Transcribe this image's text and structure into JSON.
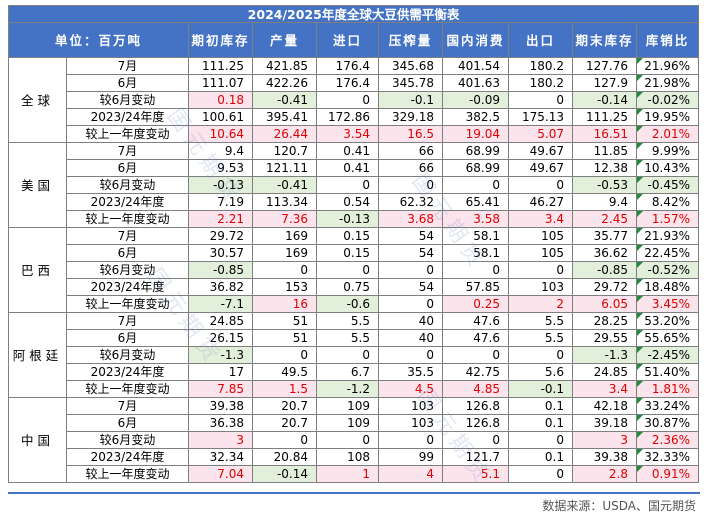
{
  "title": "2024/2025年度全球大豆供需平衡表",
  "header": {
    "unit_label": "单位：百万吨",
    "columns": [
      "期初库存",
      "产量",
      "进口",
      "压榨量",
      "国内消费",
      "出口",
      "期末库存",
      "库销比"
    ]
  },
  "row_labels": [
    "7月",
    "6月",
    "较6月变动",
    "2023/24年度",
    "较上一年度变动"
  ],
  "regions": [
    {
      "name": "全球",
      "rows": [
        [
          "111.25",
          "421.85",
          "176.4",
          "345.68",
          "401.54",
          "180.2",
          "127.76",
          "21.96%"
        ],
        [
          "111.07",
          "422.26",
          "176.4",
          "345.78",
          "401.63",
          "180.2",
          "127.9",
          "21.98%"
        ],
        [
          "0.18",
          "-0.41",
          "0",
          "-0.1",
          "-0.09",
          "0",
          "-0.14",
          "-0.02%"
        ],
        [
          "100.61",
          "395.41",
          "172.86",
          "329.18",
          "382.5",
          "175.13",
          "111.25",
          "19.95%"
        ],
        [
          "10.64",
          "26.44",
          "3.54",
          "16.5",
          "19.04",
          "5.07",
          "16.51",
          "2.01%"
        ]
      ]
    },
    {
      "name": "美国",
      "rows": [
        [
          "9.4",
          "120.7",
          "0.41",
          "66",
          "68.99",
          "49.67",
          "11.85",
          "9.99%"
        ],
        [
          "9.53",
          "121.11",
          "0.41",
          "66",
          "68.99",
          "49.67",
          "12.38",
          "10.43%"
        ],
        [
          "-0.13",
          "-0.41",
          "0",
          "0",
          "0",
          "0",
          "-0.53",
          "-0.45%"
        ],
        [
          "7.19",
          "113.34",
          "0.54",
          "62.32",
          "65.41",
          "46.27",
          "9.4",
          "8.42%"
        ],
        [
          "2.21",
          "7.36",
          "-0.13",
          "3.68",
          "3.58",
          "3.4",
          "2.45",
          "1.57%"
        ]
      ]
    },
    {
      "name": "巴西",
      "rows": [
        [
          "29.72",
          "169",
          "0.15",
          "54",
          "58.1",
          "105",
          "35.77",
          "21.93%"
        ],
        [
          "30.57",
          "169",
          "0.15",
          "54",
          "58.1",
          "105",
          "36.62",
          "22.45%"
        ],
        [
          "-0.85",
          "0",
          "0",
          "0",
          "0",
          "0",
          "-0.85",
          "-0.52%"
        ],
        [
          "36.82",
          "153",
          "0.75",
          "54",
          "57.85",
          "103",
          "29.72",
          "18.48%"
        ],
        [
          "-7.1",
          "16",
          "-0.6",
          "0",
          "0.25",
          "2",
          "6.05",
          "3.45%"
        ]
      ]
    },
    {
      "name": "阿根廷",
      "rows": [
        [
          "24.85",
          "51",
          "5.5",
          "40",
          "47.6",
          "5.5",
          "28.25",
          "53.20%"
        ],
        [
          "26.15",
          "51",
          "5.5",
          "40",
          "47.6",
          "5.5",
          "29.55",
          "55.65%"
        ],
        [
          "-1.3",
          "0",
          "0",
          "0",
          "0",
          "0",
          "-1.3",
          "-2.45%"
        ],
        [
          "17",
          "49.5",
          "6.7",
          "35.5",
          "42.75",
          "5.6",
          "24.85",
          "51.40%"
        ],
        [
          "7.85",
          "1.5",
          "-1.2",
          "4.5",
          "4.85",
          "-0.1",
          "3.4",
          "1.81%"
        ]
      ]
    },
    {
      "name": "中国",
      "rows": [
        [
          "39.38",
          "20.7",
          "109",
          "103",
          "126.8",
          "0.1",
          "42.18",
          "33.24%"
        ],
        [
          "36.38",
          "20.7",
          "109",
          "103",
          "126.8",
          "0.1",
          "39.18",
          "30.87%"
        ],
        [
          "3",
          "0",
          "0",
          "0",
          "0",
          "0",
          "3",
          "2.36%"
        ],
        [
          "32.34",
          "20.84",
          "108",
          "99",
          "121.7",
          "0.1",
          "39.38",
          "32.33%"
        ],
        [
          "7.04",
          "-0.14",
          "1",
          "4",
          "5.1",
          "0",
          "2.8",
          "0.91%"
        ]
      ]
    }
  ],
  "footer_source": "数据来源：USDA、国元期货",
  "watermark": "国元期货",
  "colors": {
    "header_blue": "#4472c4",
    "positive_fill": "#fce4ec",
    "positive_text": "#e00000",
    "negative_fill": "#e2efda"
  }
}
